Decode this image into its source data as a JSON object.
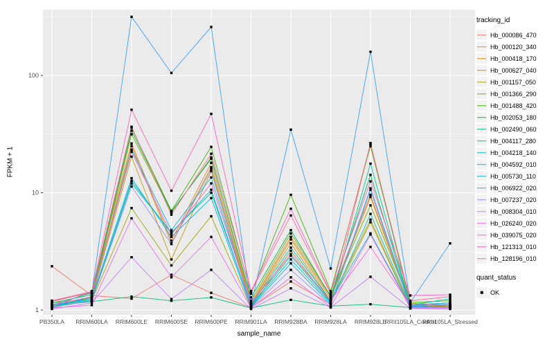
{
  "chart_data": {
    "type": "line",
    "title": "",
    "xlabel": "sample_name",
    "ylabel": "FPKM + 1",
    "y_scale": "log10",
    "y_ticks": [
      1,
      10,
      100
    ],
    "y_minor_gridlines": [
      3.162,
      31.623,
      316.23
    ],
    "ylim": [
      1,
      370
    ],
    "grid": "on",
    "legend_position": "right",
    "panel_bg": "#EBEBEB",
    "grid_color": "#FFFFFF",
    "tick_color": "#333333",
    "tick_label_color": "#4D4D4D",
    "point_color": "#000000",
    "point_shape": "square",
    "x_categories": [
      "PB350LA",
      "RRIM600LA",
      "RRIM600LE",
      "RRIM600SE",
      "RRIM600PE",
      "RRIM901LA",
      "RRIM928BA",
      "RRIM928LA",
      "RRIM928LE",
      "RRII105LA_Control",
      "RRII105LA_Stressed"
    ],
    "legend_title": "tracking_id",
    "quant_status": {
      "title": "quant_status",
      "items": [
        "OK"
      ]
    },
    "series": [
      {
        "name": "Hb_000086_470",
        "color": "#F8766D",
        "values": [
          2.36,
          1.33,
          1.25,
          2.0,
          1.4,
          1.05,
          1.75,
          1.12,
          26.5,
          1.12,
          1.05
        ]
      },
      {
        "name": "Hb_000120_340",
        "color": "#EA8331",
        "values": [
          1.05,
          1.45,
          26.3,
          3.9,
          18.0,
          1.15,
          4.2,
          1.3,
          9.6,
          1.1,
          1.08
        ]
      },
      {
        "name": "Hb_000418_170",
        "color": "#D89000",
        "values": [
          1.1,
          1.3,
          25.0,
          3.7,
          16.5,
          1.12,
          4.0,
          1.25,
          9.2,
          1.08,
          1.05
        ]
      },
      {
        "name": "Hb_000627_040",
        "color": "#C09B00",
        "values": [
          1.15,
          1.25,
          20.3,
          2.7,
          15.3,
          1.1,
          3.7,
          1.2,
          5.9,
          1.06,
          1.1
        ]
      },
      {
        "name": "Hb_001157_050",
        "color": "#A3A500",
        "values": [
          1.1,
          1.2,
          7.4,
          2.4,
          6.3,
          1.05,
          3.2,
          1.15,
          5.6,
          1.05,
          1.08
        ]
      },
      {
        "name": "Hb_001366_290",
        "color": "#7CAE00",
        "values": [
          1.05,
          1.28,
          31.5,
          6.8,
          20.0,
          1.2,
          4.5,
          1.32,
          7.8,
          1.14,
          1.1
        ]
      },
      {
        "name": "Hb_001488_420",
        "color": "#39B600",
        "values": [
          1.2,
          1.4,
          35.8,
          7.0,
          24.6,
          1.38,
          9.6,
          1.45,
          25.0,
          1.16,
          1.2
        ]
      },
      {
        "name": "Hb_002053_180",
        "color": "#00BB4E",
        "values": [
          1.15,
          1.35,
          33.8,
          6.9,
          19.5,
          1.28,
          4.8,
          1.3,
          14.2,
          1.1,
          1.15
        ]
      },
      {
        "name": "Hb_002490_060",
        "color": "#00BF7D",
        "values": [
          1.08,
          1.18,
          1.3,
          1.2,
          1.28,
          1.04,
          1.22,
          1.08,
          1.12,
          1.05,
          1.06
        ]
      },
      {
        "name": "Hb_004117_280",
        "color": "#00C1A3",
        "values": [
          1.12,
          1.22,
          12.0,
          4.6,
          10.0,
          1.1,
          2.9,
          1.18,
          17.7,
          1.1,
          1.25
        ]
      },
      {
        "name": "Hb_004218_140",
        "color": "#00BFC4",
        "values": [
          1.1,
          1.2,
          12.6,
          4.5,
          10.6,
          1.08,
          2.7,
          1.15,
          6.6,
          1.08,
          1.12
        ]
      },
      {
        "name": "Hb_004592_010",
        "color": "#00BAE0",
        "values": [
          1.06,
          1.3,
          23.3,
          4.8,
          13.5,
          1.1,
          3.4,
          1.2,
          4.5,
          1.07,
          1.1
        ]
      },
      {
        "name": "Hb_005730_110",
        "color": "#00B0F6",
        "values": [
          1.1,
          1.25,
          13.3,
          4.2,
          9.0,
          1.06,
          2.5,
          1.12,
          10.9,
          1.1,
          1.15
        ]
      },
      {
        "name": "Hb_006922_020",
        "color": "#35A2FF",
        "values": [
          1.1,
          1.4,
          316,
          105,
          259,
          1.1,
          34.5,
          2.26,
          159,
          1.16,
          3.7
        ]
      },
      {
        "name": "Hb_007237_020",
        "color": "#9590FF",
        "values": [
          1.05,
          1.2,
          11.3,
          3.65,
          15.8,
          1.05,
          2.2,
          1.1,
          10.6,
          1.05,
          1.05
        ]
      },
      {
        "name": "Hb_008304_010",
        "color": "#C77CFF",
        "values": [
          1.02,
          1.15,
          2.82,
          1.24,
          2.2,
          1.02,
          1.53,
          1.05,
          1.92,
          1.03,
          1.02
        ]
      },
      {
        "name": "Hb_026240_020",
        "color": "#ED68ED",
        "values": [
          1.04,
          1.1,
          6.05,
          1.9,
          4.2,
          1.04,
          1.9,
          1.06,
          4.4,
          1.04,
          1.04
        ]
      },
      {
        "name": "Hb_039075_020",
        "color": "#FA62DB",
        "values": [
          1.1,
          1.3,
          22.3,
          4.4,
          12.0,
          1.15,
          3.0,
          1.2,
          3.45,
          1.1,
          1.1
        ]
      },
      {
        "name": "Hb_121313_010",
        "color": "#FF62BC",
        "values": [
          1.2,
          1.44,
          51.0,
          10.4,
          47.0,
          1.45,
          7.3,
          1.4,
          12.5,
          1.33,
          1.35
        ]
      },
      {
        "name": "Hb_128196_010",
        "color": "#FF6A98",
        "values": [
          1.18,
          1.42,
          36.5,
          6.5,
          21.5,
          1.42,
          6.4,
          1.38,
          26.0,
          1.2,
          1.3
        ]
      }
    ]
  }
}
